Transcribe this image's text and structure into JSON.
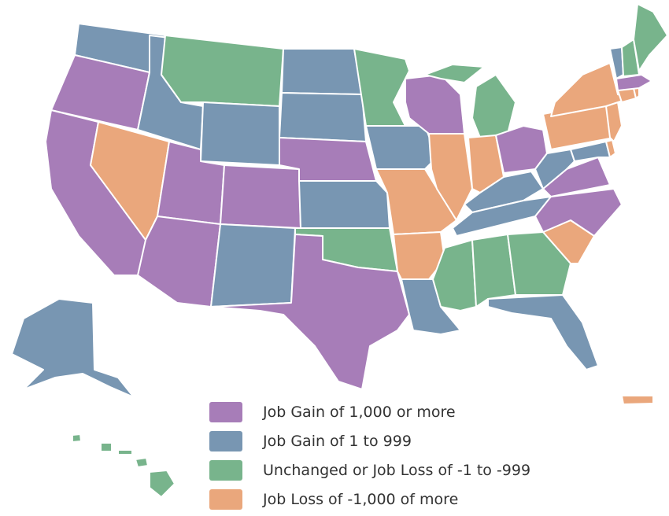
{
  "colors": {
    "gain_1000_plus": "#a77db8",
    "gain_1_999": "#7896b2",
    "unchanged_small_loss": "#78b48c",
    "loss_1000_plus": "#eaa77c"
  },
  "legend": [
    {
      "category": "gain_1000_plus",
      "label": "Job Gain of 1,000 or more"
    },
    {
      "category": "gain_1_999",
      "label": "Job Gain of 1 to 999"
    },
    {
      "category": "unchanged_small_loss",
      "label": "Unchanged or Job Loss of -1 to -999"
    },
    {
      "category": "loss_1000_plus",
      "label": "Job Loss of -1,000 of more"
    }
  ],
  "states": {
    "washington": "gain_1_999",
    "oregon": "gain_1000_plus",
    "california": "gain_1000_plus",
    "nevada": "loss_1000_plus",
    "idaho": "gain_1_999",
    "montana": "unchanged_small_loss",
    "wyoming": "gain_1_999",
    "utah": "gain_1000_plus",
    "arizona": "gain_1000_plus",
    "colorado": "gain_1000_plus",
    "new-mexico": "gain_1_999",
    "north-dakota": "gain_1_999",
    "south-dakota": "gain_1_999",
    "nebraska": "gain_1000_plus",
    "kansas": "gain_1_999",
    "oklahoma": "unchanged_small_loss",
    "texas": "gain_1000_plus",
    "minnesota": "unchanged_small_loss",
    "iowa": "gain_1_999",
    "missouri": "loss_1000_plus",
    "arkansas": "loss_1000_plus",
    "louisiana": "gain_1_999",
    "wisconsin": "gain_1000_plus",
    "illinois": "loss_1000_plus",
    "michigan": "unchanged_small_loss",
    "indiana": "loss_1000_plus",
    "ohio": "gain_1000_plus",
    "kentucky": "gain_1_999",
    "tennessee": "gain_1_999",
    "mississippi": "unchanged_small_loss",
    "alabama": "unchanged_small_loss",
    "georgia": "unchanged_small_loss",
    "florida": "gain_1_999",
    "south-carolina": "loss_1000_plus",
    "north-carolina": "gain_1000_plus",
    "virginia": "gain_1000_plus",
    "west-virginia": "gain_1_999",
    "maryland": "gain_1_999",
    "delaware": "loss_1000_plus",
    "pennsylvania": "loss_1000_plus",
    "new-jersey": "loss_1000_plus",
    "new-york": "loss_1000_plus",
    "connecticut": "loss_1000_plus",
    "rhode-island": "loss_1000_plus",
    "massachusetts": "gain_1000_plus",
    "vermont": "gain_1_999",
    "new-hampshire": "unchanged_small_loss",
    "maine": "unchanged_small_loss",
    "alaska": "gain_1_999",
    "hawaii": "unchanged_small_loss",
    "puerto-rico": "loss_1000_plus"
  }
}
